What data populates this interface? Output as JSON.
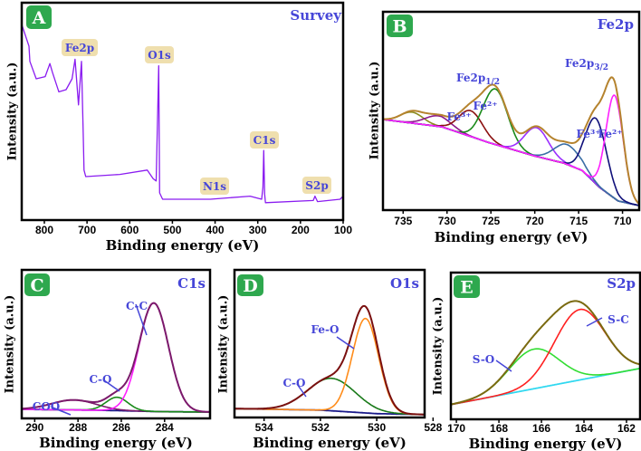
{
  "chart_data": [
    {
      "id": "A",
      "type": "line",
      "panel_letter": "A",
      "title": "Survey",
      "xlabel": "Binding energy (eV)",
      "ylabel": "Intensity (a.u.)",
      "xlim": [
        853,
        100
      ],
      "ylim": [
        0,
        100
      ],
      "xticks": [
        800,
        700,
        600,
        500,
        400,
        300,
        200,
        100
      ],
      "color": "#8a1cf0",
      "series": [
        {
          "name": "Survey",
          "points": [
            [
              853,
              90
            ],
            [
              836,
              80
            ],
            [
              834,
              73
            ],
            [
              819,
              65
            ],
            [
              798,
              66
            ],
            [
              787,
              72
            ],
            [
              781,
              68
            ],
            [
              766,
              59
            ],
            [
              749,
              60
            ],
            [
              735,
              65
            ],
            [
              728,
              74
            ],
            [
              720,
              53
            ],
            [
              713,
              73
            ],
            [
              709,
              40
            ],
            [
              707,
              23
            ],
            [
              703,
              20
            ],
            [
              623,
              21
            ],
            [
              559,
              23
            ],
            [
              545,
              19
            ],
            [
              538,
              18
            ],
            [
              532,
              71
            ],
            [
              530,
              12.5
            ],
            [
              523,
              9.6
            ],
            [
              411,
              9.6
            ],
            [
              318,
              11
            ],
            [
              291,
              9.6
            ],
            [
              288,
              15
            ],
            [
              286,
              32
            ],
            [
              284,
              12
            ],
            [
              282,
              8
            ],
            [
              170,
              9
            ],
            [
              166,
              11
            ],
            [
              160,
              8.5
            ],
            [
              107,
              9.6
            ],
            [
              100,
              11
            ]
          ]
        }
      ],
      "annotations": [
        {
          "id": "fe2p",
          "text": "Fe2p"
        },
        {
          "id": "o1s",
          "text": "O1s"
        },
        {
          "id": "c1s",
          "text": "C1s"
        },
        {
          "id": "n1s",
          "text": "N1s"
        },
        {
          "id": "s2p",
          "text": "S2p"
        }
      ]
    },
    {
      "id": "B",
      "type": "line",
      "panel_letter": "B",
      "title": "Fe2p",
      "xlabel": "Binding energy (eV)",
      "ylabel": "Intensity (a.u.)",
      "xlim": [
        737.3,
        708.1
      ],
      "ylim": [
        0,
        100
      ],
      "xticks": [
        735,
        730,
        725,
        720,
        715,
        710
      ],
      "background": {
        "color": "#2aa5a5",
        "points": [
          [
            737.3,
            45.7
          ],
          [
            730.6,
            42
          ],
          [
            725.2,
            34
          ],
          [
            720.1,
            27.4
          ],
          [
            716.7,
            23.7
          ],
          [
            714.6,
            20
          ],
          [
            712.6,
            11.4
          ],
          [
            710.5,
            4.6
          ],
          [
            708.1,
            2.3
          ]
        ]
      },
      "envelope_color": "#b5832e",
      "peaks": [
        {
          "name": "satellite-734",
          "center": 734,
          "height": 5.5,
          "fwhm": 3.0,
          "color": "#8c8c1e"
        },
        {
          "name": "satellite-731",
          "center": 731,
          "height": 5.3,
          "fwhm": 3.5,
          "color": "#8b1a8b"
        },
        {
          "name": "Fe3+ 2p1/2",
          "center": 727.3,
          "height": 13,
          "fwhm": 3.2,
          "color": "#8b1010"
        },
        {
          "name": "Fe2+ 2p1/2",
          "center": 724.5,
          "height": 28,
          "fwhm": 3.3,
          "color": "#1a8a1a"
        },
        {
          "name": "satellite-719.8",
          "center": 719.8,
          "height": 14.5,
          "fwhm": 3.2,
          "color": "#9b30ff"
        },
        {
          "name": "satellite-716.3",
          "center": 716.3,
          "height": 10,
          "fwhm": 3.5,
          "color": "#3a6ea5"
        },
        {
          "name": "Fe3+ 2p3/2",
          "center": 713,
          "height": 33,
          "fwhm": 2.8,
          "color": "#10107a"
        },
        {
          "name": "Fe2+ 2p3/2",
          "center": 710.9,
          "height": 52,
          "fwhm": 2.3,
          "color": "#ff20ff"
        }
      ],
      "annotations": [
        {
          "id": "p12",
          "text": "Fe2p",
          "sub": "1/2"
        },
        {
          "id": "p32",
          "text": "Fe2p",
          "sub": "3/2"
        },
        {
          "id": "fe3a",
          "text": "Fe³⁺"
        },
        {
          "id": "fe2a",
          "text": "Fe²⁺"
        },
        {
          "id": "fe3b",
          "text": "Fe³⁺"
        },
        {
          "id": "fe2b",
          "text": "Fe²⁺"
        }
      ]
    },
    {
      "id": "C",
      "type": "line",
      "panel_letter": "C",
      "title": "C1s",
      "xlabel": "Binding energy (eV)",
      "ylabel": "Intensity (a.u.)",
      "xlim": [
        290.6,
        281.9
      ],
      "ylim": [
        0,
        100
      ],
      "xticks": [
        290,
        288,
        286,
        284
      ],
      "background": {
        "color": "#1a1a8a",
        "points": [
          [
            290.6,
            6.1
          ],
          [
            287,
            5.5
          ],
          [
            284,
            4.5
          ],
          [
            281.9,
            4.3
          ]
        ]
      },
      "envelope_color": "#7b1a6b",
      "peaks": [
        {
          "name": "COO",
          "center": 288.2,
          "height": 6.7,
          "fwhm": 2.4,
          "color": "#7b1a6b"
        },
        {
          "name": "C-O",
          "center": 286.2,
          "height": 9,
          "fwhm": 1.2,
          "color": "#1a8a1a"
        },
        {
          "name": "C-C",
          "center": 284.5,
          "height": 73,
          "fwhm": 1.6,
          "color": "#ff20ff"
        }
      ],
      "annotations": [
        {
          "id": "cc",
          "text": "C-C"
        },
        {
          "id": "co",
          "text": "C-O"
        },
        {
          "id": "coo",
          "text": "COO"
        }
      ]
    },
    {
      "id": "D",
      "type": "line",
      "panel_letter": "D",
      "title": "O1s",
      "xlabel": "Binding energy (eV)",
      "ylabel": "Intensity (a.u.)",
      "xlim": [
        535.05,
        528.3
      ],
      "ylim": [
        0,
        100
      ],
      "xticks": [
        534,
        532,
        530,
        528
      ],
      "background": {
        "color": "#1a1a8a",
        "points": [
          [
            535.05,
            6
          ],
          [
            532,
            5
          ],
          [
            530,
            2.6
          ],
          [
            528.3,
            2
          ]
        ]
      },
      "envelope_color": "#7a1010",
      "peaks": [
        {
          "name": "C-O",
          "center": 531.6,
          "height": 22,
          "fwhm": 2.0,
          "color": "#1a7a1a"
        },
        {
          "name": "Fe-O",
          "center": 530.4,
          "height": 64,
          "fwhm": 1.1,
          "color": "#ff8c1a"
        }
      ],
      "annotations": [
        {
          "id": "feo",
          "text": "Fe-O"
        },
        {
          "id": "co",
          "text": "C-O"
        }
      ]
    },
    {
      "id": "E",
      "type": "line",
      "panel_letter": "E",
      "title": "S2p",
      "xlabel": "Binding energy (eV)",
      "ylabel": "Intensity (a.u.)",
      "xlim": [
        170.26,
        161.36
      ],
      "ylim": [
        0,
        100
      ],
      "xticks": [
        170,
        168,
        166,
        164,
        162
      ],
      "background": {
        "color": "#30d8f0",
        "points": [
          [
            170.26,
            10
          ],
          [
            161.36,
            34.7
          ]
        ]
      },
      "envelope_color": "#7a6a10",
      "peaks": [
        {
          "name": "S-O",
          "center": 166.35,
          "height": 27,
          "fwhm": 2.8,
          "color": "#33dd33"
        },
        {
          "name": "S-C",
          "center": 164.2,
          "height": 48,
          "fwhm": 2.8,
          "color": "#ff2020"
        }
      ],
      "annotations": [
        {
          "id": "sc",
          "text": "S-C"
        },
        {
          "id": "so",
          "text": "S-O"
        }
      ]
    }
  ]
}
